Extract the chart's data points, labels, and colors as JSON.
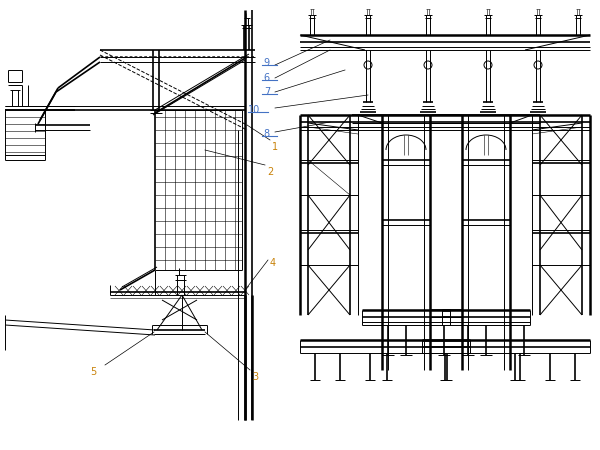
{
  "bg_color": "#ffffff",
  "line_color": "#000000",
  "label_color": "#c8820a",
  "label_color2": "#4472c4",
  "fig_width": 6.0,
  "fig_height": 4.5,
  "dpi": 100
}
